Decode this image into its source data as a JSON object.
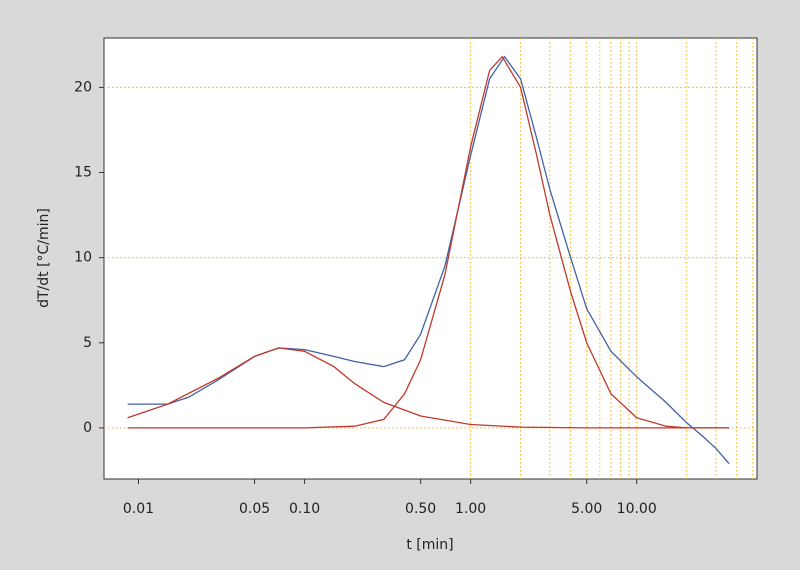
{
  "chart_data": {
    "type": "line",
    "xlabel": "t [min]",
    "ylabel": "dT/dt [°C/min]",
    "xscale": "log",
    "xlim": [
      0.0062,
      53
    ],
    "ylim": [
      -3,
      22.9
    ],
    "xticks": [
      {
        "value": 0.01,
        "label": "0.01"
      },
      {
        "value": 0.05,
        "label": "0.05"
      },
      {
        "value": 0.1,
        "label": "0.10"
      },
      {
        "value": 0.5,
        "label": "0.50"
      },
      {
        "value": 1,
        "label": "1.00"
      },
      {
        "value": 5,
        "label": "5.00"
      },
      {
        "value": 10,
        "label": "10.00"
      }
    ],
    "yticks": [
      0,
      5,
      10,
      15,
      20
    ],
    "hgrid": [
      0,
      10,
      20
    ],
    "vgrid": [
      1,
      2,
      3,
      4,
      5,
      6,
      7,
      8,
      9,
      10,
      20,
      30,
      40,
      50
    ],
    "grid_color": "#e8b030",
    "series": [
      {
        "color": "#3f62a8",
        "x": [
          0.0086,
          0.015,
          0.02,
          0.03,
          0.05,
          0.07,
          0.1,
          0.15,
          0.2,
          0.3,
          0.4,
          0.5,
          0.7,
          1.0,
          1.3,
          1.6,
          2.0,
          2.5,
          3,
          4,
          5,
          7,
          10,
          15,
          20,
          25,
          30,
          36
        ],
        "values": [
          1.4,
          1.4,
          1.8,
          2.8,
          4.2,
          4.7,
          4.6,
          4.2,
          3.9,
          3.6,
          4.0,
          5.5,
          9.5,
          16,
          20.5,
          21.8,
          20.5,
          17,
          14,
          10,
          7,
          4.5,
          3,
          1.5,
          0.3,
          -0.5,
          -1.2,
          -2.1
        ]
      },
      {
        "color": "#c0392b",
        "x": [
          0.0086,
          0.015,
          0.03,
          0.05,
          0.07,
          0.1,
          0.15,
          0.2,
          0.3,
          0.5,
          1,
          2,
          5,
          36
        ],
        "values": [
          0.6,
          1.4,
          2.9,
          4.2,
          4.7,
          4.5,
          3.6,
          2.6,
          1.5,
          0.7,
          0.2,
          0.05,
          0,
          0
        ]
      },
      {
        "color": "#c0392b",
        "x": [
          0.0086,
          0.1,
          0.2,
          0.3,
          0.4,
          0.5,
          0.7,
          1,
          1.3,
          1.55,
          2,
          2.5,
          3,
          4,
          5,
          7,
          10,
          15,
          20,
          36
        ],
        "values": [
          0,
          0,
          0.1,
          0.5,
          2,
          4,
          9,
          16.5,
          21,
          21.8,
          20,
          16,
          12.5,
          8,
          5,
          2,
          0.6,
          0.1,
          0,
          0
        ]
      }
    ]
  }
}
